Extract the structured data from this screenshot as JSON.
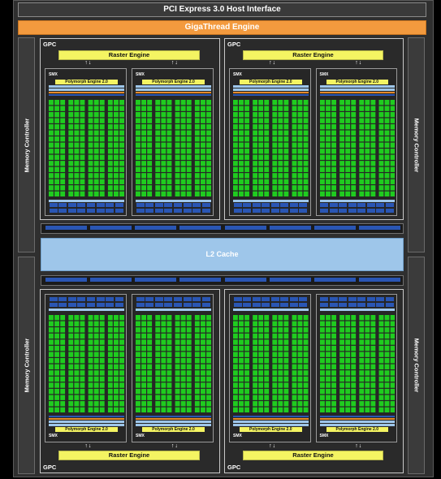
{
  "pcie_label": "PCI Express 3.0 Host Interface",
  "gigathread_label": "GigaThread Engine",
  "l2_label": "L2 Cache",
  "memory_controller_label": "Memory Controller",
  "gpc_label": "GPC",
  "raster_label": "Raster Engine",
  "smx_label": "SMX",
  "polymorph_label": "Polymorph Engine 2.0",
  "colors": {
    "core_green": "#1fcc1f",
    "raster_yellow": "#f4f462",
    "gigathread_orange": "#f39a3e",
    "l2_blue": "#9ec6ea",
    "ldst_blue": "#2a56b4"
  }
}
